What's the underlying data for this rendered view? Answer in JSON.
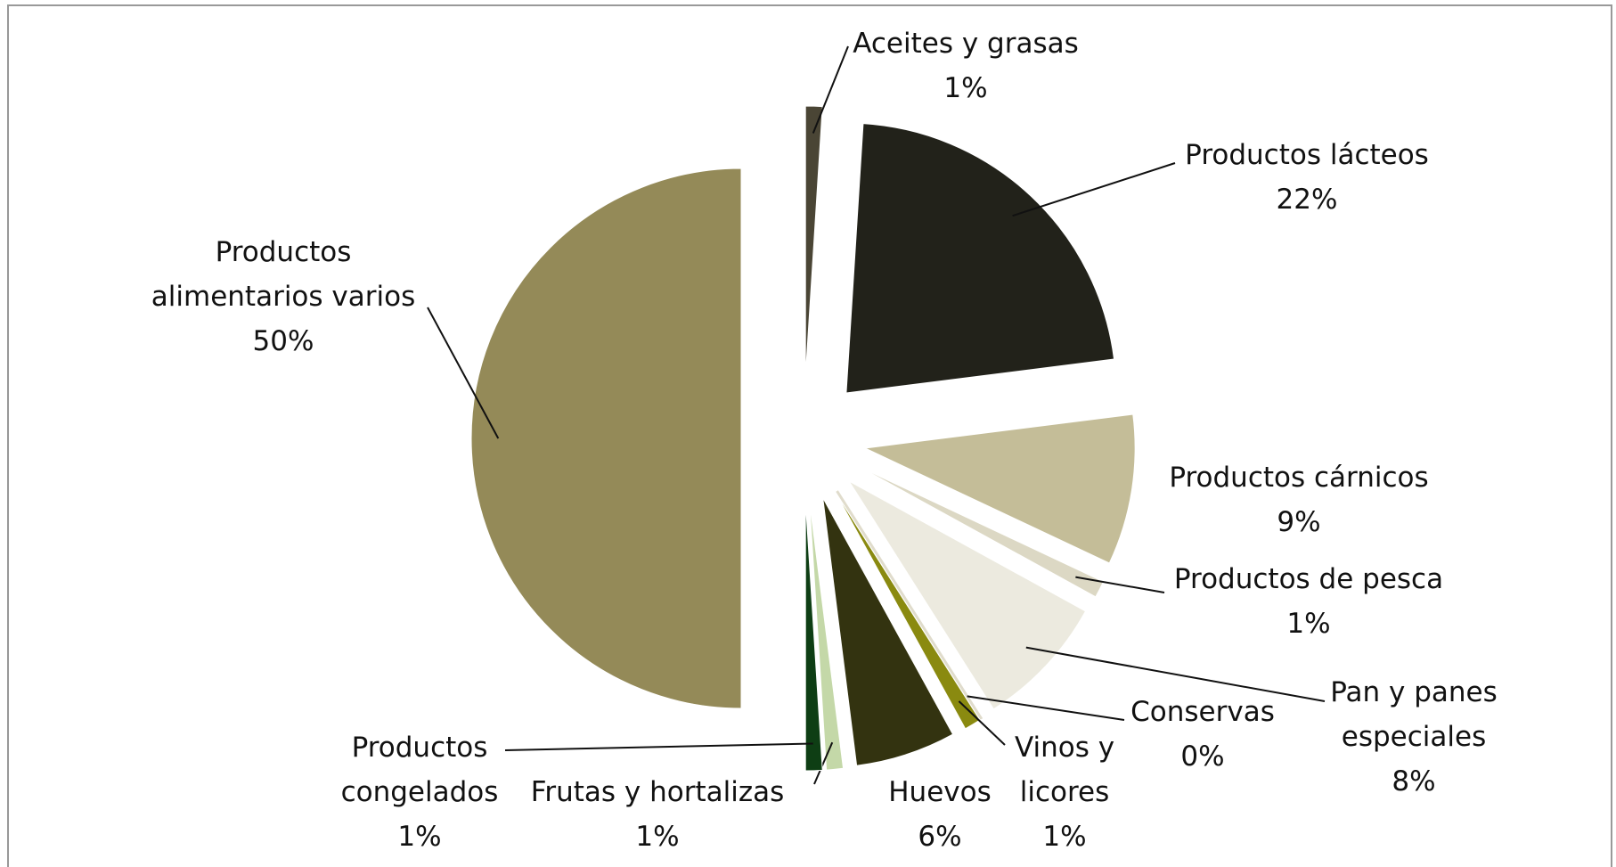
{
  "chart_data": {
    "type": "pie",
    "categories": [
      "Aceites y grasas",
      "Productos lácteos",
      "Productos cárnicos",
      "Productos de pesca",
      "Pan y panes especiales",
      "Conservas",
      "Vinos y licores",
      "Huevos",
      "Frutas y hortalizas",
      "Productos congelados",
      "Productos alimentarios varios"
    ],
    "values": [
      1,
      22,
      9,
      1,
      8,
      0,
      1,
      6,
      1,
      1,
      50
    ],
    "value_labels": [
      "1%",
      "22%",
      "9%",
      "1%",
      "8%",
      "0%",
      "1%",
      "6%",
      "1%",
      "1%",
      "50%"
    ],
    "colors": [
      "#4a4535",
      "#22221a",
      "#c4bd98",
      "#dcd8c4",
      "#eceadf",
      "#e0dccc",
      "#8a8a10",
      "#333310",
      "#c4d8a8",
      "#0e3e14",
      "#948a58"
    ]
  }
}
